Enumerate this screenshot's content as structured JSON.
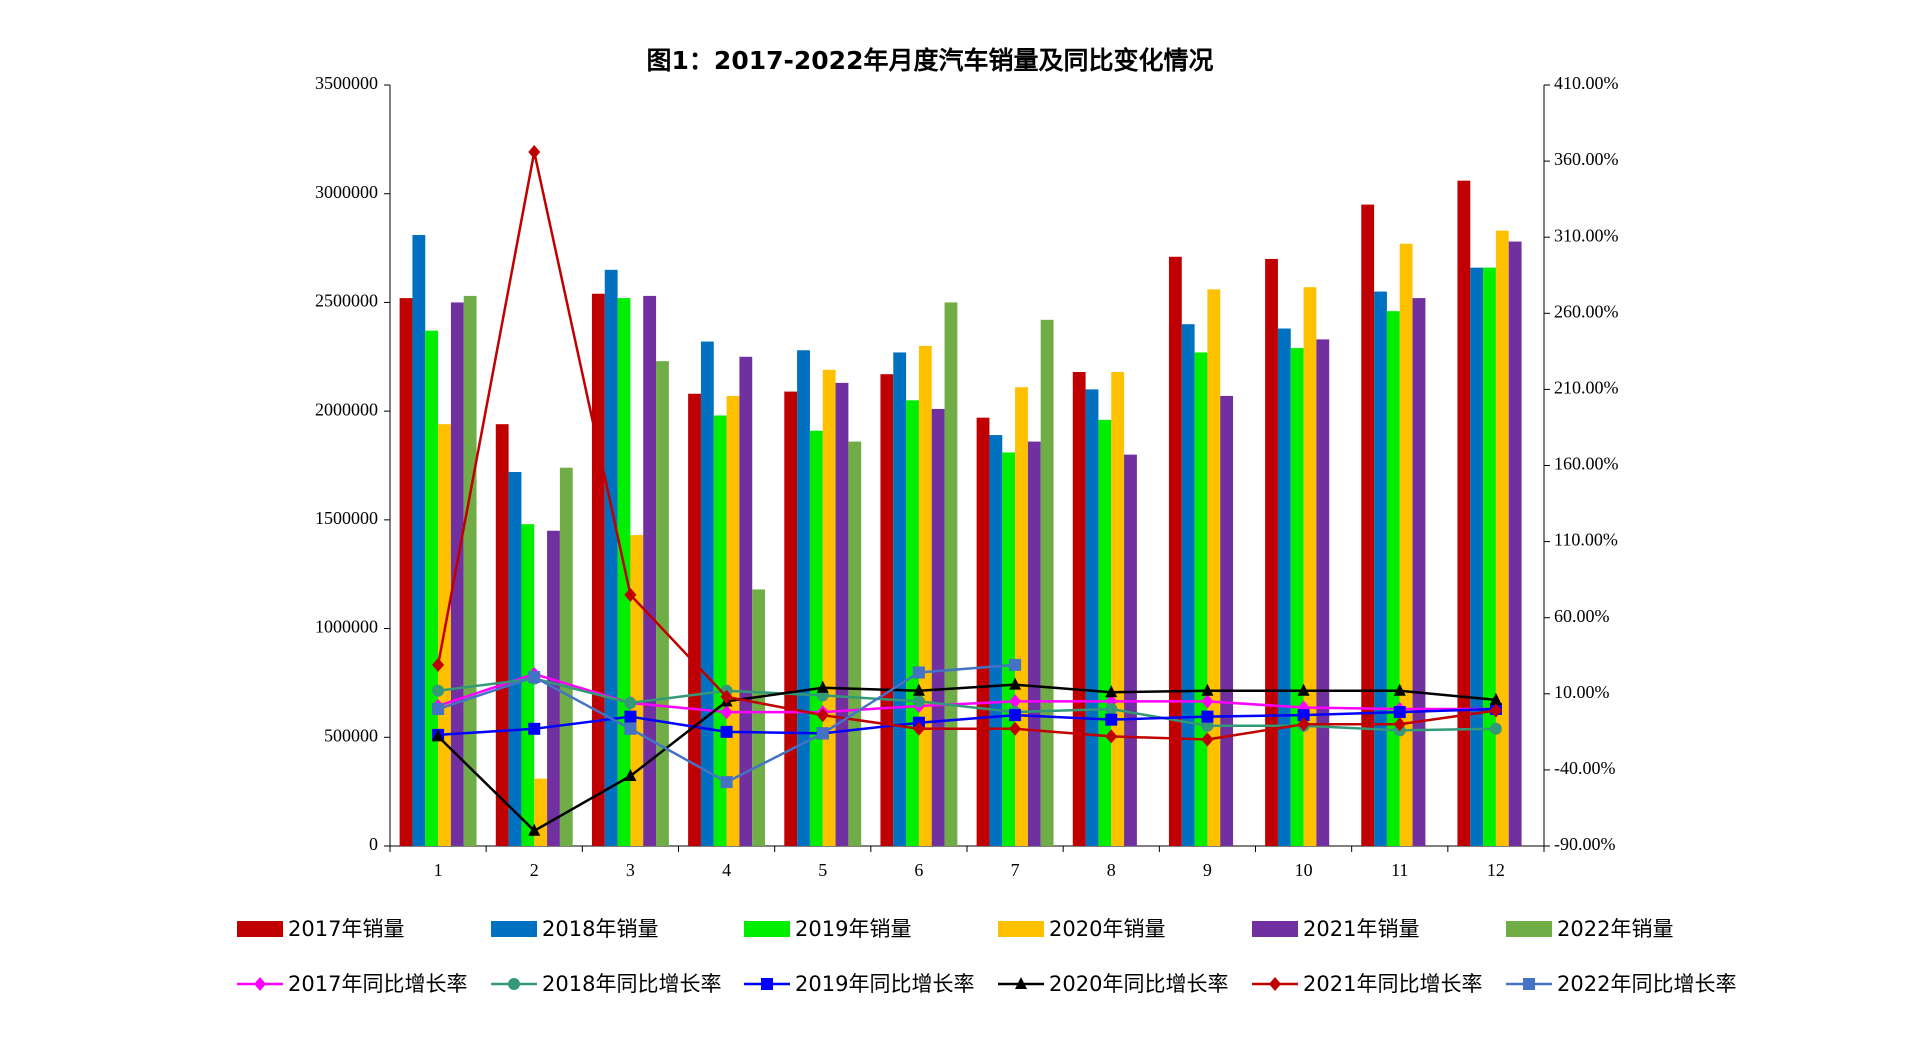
{
  "chart_data": {
    "type": "bar",
    "title": "图1：2017-2022年月度汽车销量及同比变化情况",
    "categories": [
      "1",
      "2",
      "3",
      "4",
      "5",
      "6",
      "7",
      "8",
      "9",
      "10",
      "11",
      "12"
    ],
    "ylim": [
      0,
      3500000
    ],
    "yticks": [
      0,
      500000,
      1000000,
      1500000,
      2000000,
      2500000,
      3000000,
      3500000
    ],
    "y2lim": [
      -90,
      410
    ],
    "y2ticks": [
      {
        "value": -90,
        "label": "-90.00%"
      },
      {
        "value": -40,
        "label": "-40.00%"
      },
      {
        "value": 10,
        "label": "10.00%"
      },
      {
        "value": 60,
        "label": "60.00%"
      },
      {
        "value": 110,
        "label": "110.00%"
      },
      {
        "value": 160,
        "label": "160.00%"
      },
      {
        "value": 210,
        "label": "210.00%"
      },
      {
        "value": 260,
        "label": "260.00%"
      },
      {
        "value": 310,
        "label": "310.00%"
      },
      {
        "value": 360,
        "label": "360.00%"
      },
      {
        "value": 410,
        "label": "410.00%"
      }
    ],
    "grid": false,
    "series": [
      {
        "name": "2017年销量",
        "type": "bar",
        "color": "#c00000",
        "values": [
          2520000,
          1940000,
          2540000,
          2080000,
          2090000,
          2170000,
          1970000,
          2180000,
          2710000,
          2700000,
          2950000,
          3060000
        ]
      },
      {
        "name": "2018年销量",
        "type": "bar",
        "color": "#0070c0",
        "values": [
          2810000,
          1720000,
          2650000,
          2320000,
          2280000,
          2270000,
          1890000,
          2100000,
          2400000,
          2380000,
          2550000,
          2660000
        ]
      },
      {
        "name": "2019年销量",
        "type": "bar",
        "color": "#00ee00",
        "values": [
          2370000,
          1480000,
          2520000,
          1980000,
          1910000,
          2050000,
          1810000,
          1960000,
          2270000,
          2290000,
          2460000,
          2660000
        ]
      },
      {
        "name": "2020年销量",
        "type": "bar",
        "color": "#ffc000",
        "values": [
          1940000,
          310000,
          1430000,
          2070000,
          2190000,
          2300000,
          2110000,
          2180000,
          2560000,
          2570000,
          2770000,
          2830000
        ]
      },
      {
        "name": "2021年销量",
        "type": "bar",
        "color": "#7030a0",
        "values": [
          2500000,
          1450000,
          2530000,
          2250000,
          2130000,
          2010000,
          1860000,
          1800000,
          2070000,
          2330000,
          2520000,
          2780000
        ]
      },
      {
        "name": "2022年销量",
        "type": "bar",
        "color": "#70ad47",
        "values": [
          2530000,
          1740000,
          2230000,
          1180000,
          1860000,
          2500000,
          2420000,
          null,
          null,
          null,
          null,
          null
        ]
      },
      {
        "name": "2017年同比增长率",
        "type": "line",
        "axis": "y2",
        "color": "#ff00ff",
        "marker": "diamond",
        "values": [
          2,
          23,
          4,
          -2,
          -2,
          2,
          5,
          5,
          5,
          1,
          0,
          0
        ]
      },
      {
        "name": "2018年同比增长率",
        "type": "line",
        "axis": "y2",
        "color": "#339977",
        "marker": "circle",
        "values": [
          12,
          20,
          4,
          12,
          9,
          5,
          -2,
          0,
          -11,
          -11,
          -14,
          -13
        ]
      },
      {
        "name": "2019年同比增长率",
        "type": "line",
        "axis": "y2",
        "color": "#0000ff",
        "marker": "square",
        "values": [
          -17,
          -13,
          -5,
          -15,
          -16,
          -9,
          -4,
          -7,
          -5,
          -4,
          -2,
          0
        ]
      },
      {
        "name": "2020年同比增长率",
        "type": "line",
        "axis": "y2",
        "color": "#000000",
        "marker": "triangle",
        "values": [
          -18,
          -80,
          -44,
          5,
          14,
          12,
          16,
          11,
          12,
          12,
          12,
          6
        ]
      },
      {
        "name": "2021年同比增长率",
        "type": "line",
        "axis": "y2",
        "color": "#c00000",
        "marker": "diamond",
        "values": [
          29,
          366,
          75,
          8,
          -4,
          -13,
          -13,
          -18,
          -20,
          -10,
          -10,
          -1
        ]
      },
      {
        "name": "2022年同比增长率",
        "type": "line",
        "axis": "y2",
        "color": "#4472c4",
        "marker": "square",
        "values": [
          0,
          21,
          -13,
          -48,
          -16,
          24,
          29,
          null,
          null,
          null,
          null,
          null
        ]
      }
    ]
  }
}
